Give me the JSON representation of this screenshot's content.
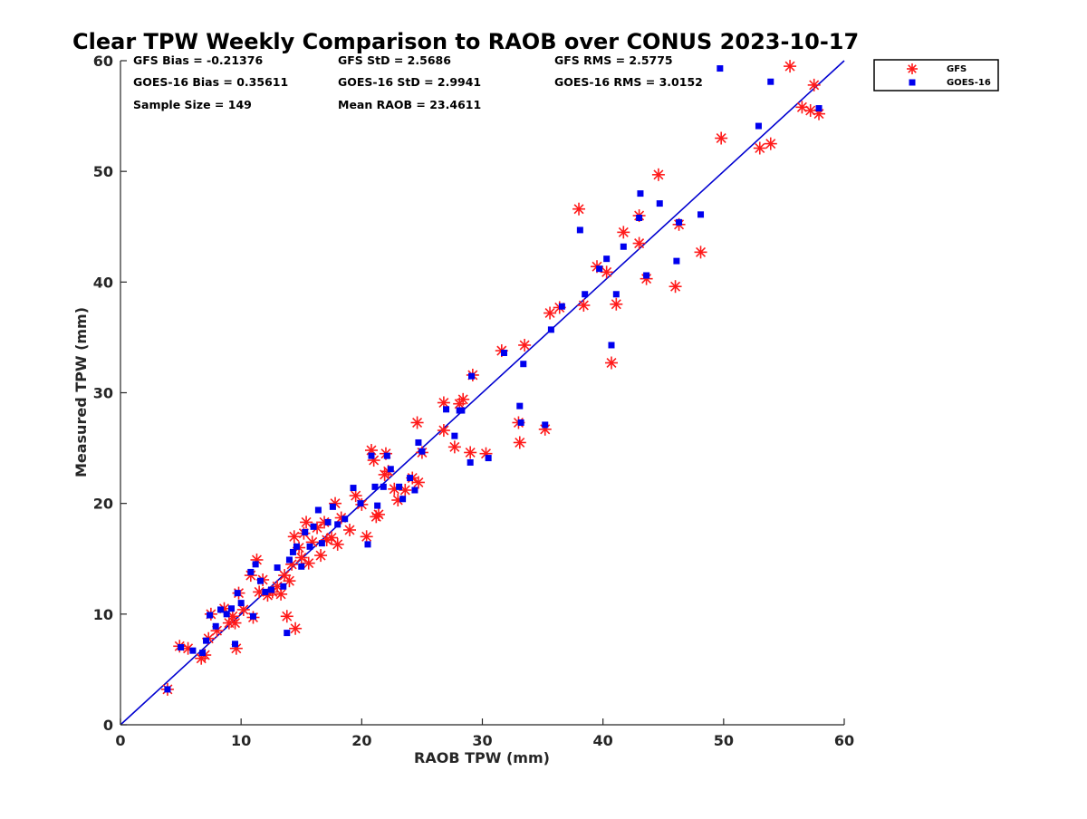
{
  "chart_data": {
    "type": "scatter",
    "title": "Clear TPW Weekly Comparison to RAOB over CONUS 2023-10-17",
    "xlabel": "RAOB TPW (mm)",
    "ylabel": "Measured TPW (mm)",
    "xlim": [
      0,
      60
    ],
    "ylim": [
      0,
      60
    ],
    "xticks": [
      "0",
      "10",
      "20",
      "30",
      "40",
      "50",
      "60"
    ],
    "yticks": [
      "0",
      "10",
      "20",
      "30",
      "40",
      "50",
      "60"
    ],
    "grid": false,
    "legend_position": "top-right, outside plot",
    "reference_line": {
      "type": "1:1",
      "color": "#0000d0"
    },
    "stats": {
      "gfs_bias": "GFS Bias = -0.21376",
      "goes_bias": "GOES-16 Bias = 0.35611",
      "sample_size": "Sample Size = 149",
      "gfs_std": "GFS StD = 2.5686",
      "goes_std": "GOES-16 StD = 2.9941",
      "mean_raob": "Mean RAOB = 23.4611",
      "gfs_rms": "GFS RMS = 2.5775",
      "goes_rms": "GOES-16 RMS = 3.0152"
    },
    "series": [
      {
        "name": "GFS",
        "marker": "asterisk",
        "color": "#ff1a1a",
        "points": [
          [
            3.9,
            3.2
          ],
          [
            4.9,
            7.1
          ],
          [
            5.6,
            6.9
          ],
          [
            6.7,
            6.0
          ],
          [
            7.0,
            6.3
          ],
          [
            7.3,
            7.8
          ],
          [
            7.5,
            10.0
          ],
          [
            8.0,
            8.5
          ],
          [
            8.6,
            10.5
          ],
          [
            9.0,
            9.2
          ],
          [
            9.3,
            9.8
          ],
          [
            9.5,
            9.2
          ],
          [
            9.6,
            6.9
          ],
          [
            9.8,
            11.9
          ],
          [
            10.2,
            10.4
          ],
          [
            10.8,
            13.5
          ],
          [
            11.0,
            9.7
          ],
          [
            11.3,
            14.9
          ],
          [
            11.5,
            12.0
          ],
          [
            11.8,
            13.1
          ],
          [
            12.2,
            11.7
          ],
          [
            12.6,
            12.0
          ],
          [
            13.0,
            12.5
          ],
          [
            13.3,
            11.8
          ],
          [
            13.6,
            13.5
          ],
          [
            13.8,
            9.8
          ],
          [
            14.0,
            13.0
          ],
          [
            14.2,
            14.5
          ],
          [
            14.4,
            17.0
          ],
          [
            14.5,
            8.7
          ],
          [
            14.8,
            16.0
          ],
          [
            15.0,
            15.1
          ],
          [
            15.2,
            17.3
          ],
          [
            15.4,
            18.3
          ],
          [
            15.6,
            14.6
          ],
          [
            15.9,
            16.5
          ],
          [
            16.3,
            17.8
          ],
          [
            16.6,
            15.3
          ],
          [
            16.9,
            18.3
          ],
          [
            17.1,
            16.7
          ],
          [
            17.5,
            16.9
          ],
          [
            17.8,
            20.0
          ],
          [
            18.0,
            16.3
          ],
          [
            18.3,
            18.7
          ],
          [
            19.0,
            17.6
          ],
          [
            19.5,
            20.7
          ],
          [
            20.0,
            19.9
          ],
          [
            20.4,
            17.0
          ],
          [
            20.8,
            24.8
          ],
          [
            21.0,
            23.9
          ],
          [
            21.2,
            18.8
          ],
          [
            21.4,
            19.0
          ],
          [
            21.9,
            22.6
          ],
          [
            22.0,
            24.5
          ],
          [
            22.2,
            22.9
          ],
          [
            22.7,
            21.3
          ],
          [
            23.0,
            20.3
          ],
          [
            23.6,
            21.2
          ],
          [
            24.2,
            22.3
          ],
          [
            24.7,
            21.9
          ],
          [
            25.0,
            24.6
          ],
          [
            24.6,
            27.3
          ],
          [
            26.8,
            29.1
          ],
          [
            26.8,
            26.6
          ],
          [
            27.7,
            25.1
          ],
          [
            28.1,
            29.0
          ],
          [
            28.4,
            29.4
          ],
          [
            29.0,
            24.6
          ],
          [
            29.2,
            31.6
          ],
          [
            30.3,
            24.5
          ],
          [
            31.6,
            33.8
          ],
          [
            33.0,
            27.3
          ],
          [
            33.1,
            25.5
          ],
          [
            33.5,
            34.3
          ],
          [
            35.2,
            26.7
          ],
          [
            35.6,
            37.2
          ],
          [
            36.4,
            37.7
          ],
          [
            38.0,
            46.6
          ],
          [
            38.4,
            37.9
          ],
          [
            39.5,
            41.4
          ],
          [
            40.3,
            40.9
          ],
          [
            40.7,
            32.7
          ],
          [
            41.1,
            38.0
          ],
          [
            41.7,
            44.5
          ],
          [
            43.0,
            46.0
          ],
          [
            43.0,
            43.5
          ],
          [
            43.6,
            40.3
          ],
          [
            44.6,
            49.7
          ],
          [
            46.0,
            39.6
          ],
          [
            46.3,
            45.2
          ],
          [
            48.1,
            42.7
          ],
          [
            49.8,
            53.0
          ],
          [
            53.0,
            52.1
          ],
          [
            53.9,
            52.5
          ],
          [
            55.5,
            59.5
          ],
          [
            56.5,
            55.8
          ],
          [
            57.5,
            57.8
          ],
          [
            57.2,
            55.5
          ],
          [
            57.9,
            55.2
          ]
        ]
      },
      {
        "name": "GOES-16",
        "marker": "square",
        "color": "#0000ee",
        "points": [
          [
            3.9,
            3.2
          ],
          [
            5.0,
            7.0
          ],
          [
            6.0,
            6.7
          ],
          [
            6.8,
            6.5
          ],
          [
            7.1,
            7.6
          ],
          [
            7.4,
            9.9
          ],
          [
            7.9,
            8.9
          ],
          [
            8.3,
            10.4
          ],
          [
            8.8,
            10.0
          ],
          [
            9.2,
            10.5
          ],
          [
            9.5,
            7.3
          ],
          [
            9.7,
            11.9
          ],
          [
            10.0,
            11.0
          ],
          [
            10.8,
            13.8
          ],
          [
            11.0,
            9.8
          ],
          [
            11.2,
            14.5
          ],
          [
            11.6,
            13.0
          ],
          [
            12.0,
            12.0
          ],
          [
            12.5,
            12.2
          ],
          [
            13.0,
            14.2
          ],
          [
            13.5,
            12.5
          ],
          [
            13.8,
            8.3
          ],
          [
            14.0,
            14.9
          ],
          [
            14.3,
            15.6
          ],
          [
            14.6,
            16.1
          ],
          [
            15.0,
            14.3
          ],
          [
            15.3,
            17.4
          ],
          [
            15.7,
            16.1
          ],
          [
            16.0,
            17.9
          ],
          [
            16.4,
            19.4
          ],
          [
            16.7,
            16.4
          ],
          [
            17.2,
            18.3
          ],
          [
            17.6,
            19.7
          ],
          [
            18.0,
            18.1
          ],
          [
            18.6,
            18.6
          ],
          [
            19.3,
            21.4
          ],
          [
            19.9,
            20.0
          ],
          [
            20.5,
            16.3
          ],
          [
            20.8,
            24.3
          ],
          [
            21.1,
            21.5
          ],
          [
            21.3,
            19.8
          ],
          [
            21.8,
            21.5
          ],
          [
            22.1,
            24.3
          ],
          [
            22.4,
            23.1
          ],
          [
            23.1,
            21.5
          ],
          [
            23.4,
            20.4
          ],
          [
            24.0,
            22.3
          ],
          [
            24.4,
            21.2
          ],
          [
            24.7,
            25.5
          ],
          [
            25.0,
            24.7
          ],
          [
            27.0,
            28.5
          ],
          [
            27.7,
            26.1
          ],
          [
            28.1,
            28.4
          ],
          [
            28.3,
            28.4
          ],
          [
            29.0,
            23.7
          ],
          [
            29.1,
            31.5
          ],
          [
            30.5,
            24.1
          ],
          [
            31.8,
            33.6
          ],
          [
            33.1,
            28.8
          ],
          [
            33.2,
            27.3
          ],
          [
            33.4,
            32.6
          ],
          [
            35.2,
            27.1
          ],
          [
            35.7,
            35.7
          ],
          [
            36.6,
            37.8
          ],
          [
            38.1,
            44.7
          ],
          [
            38.5,
            38.9
          ],
          [
            39.7,
            41.2
          ],
          [
            40.3,
            42.1
          ],
          [
            40.7,
            34.3
          ],
          [
            41.1,
            38.9
          ],
          [
            41.7,
            43.2
          ],
          [
            43.0,
            45.8
          ],
          [
            43.1,
            48.0
          ],
          [
            43.6,
            40.6
          ],
          [
            44.7,
            47.1
          ],
          [
            46.1,
            41.9
          ],
          [
            46.3,
            45.4
          ],
          [
            48.1,
            46.1
          ],
          [
            49.7,
            59.3
          ],
          [
            52.9,
            54.1
          ],
          [
            53.9,
            58.1
          ],
          [
            57.9,
            55.7
          ]
        ]
      }
    ]
  }
}
